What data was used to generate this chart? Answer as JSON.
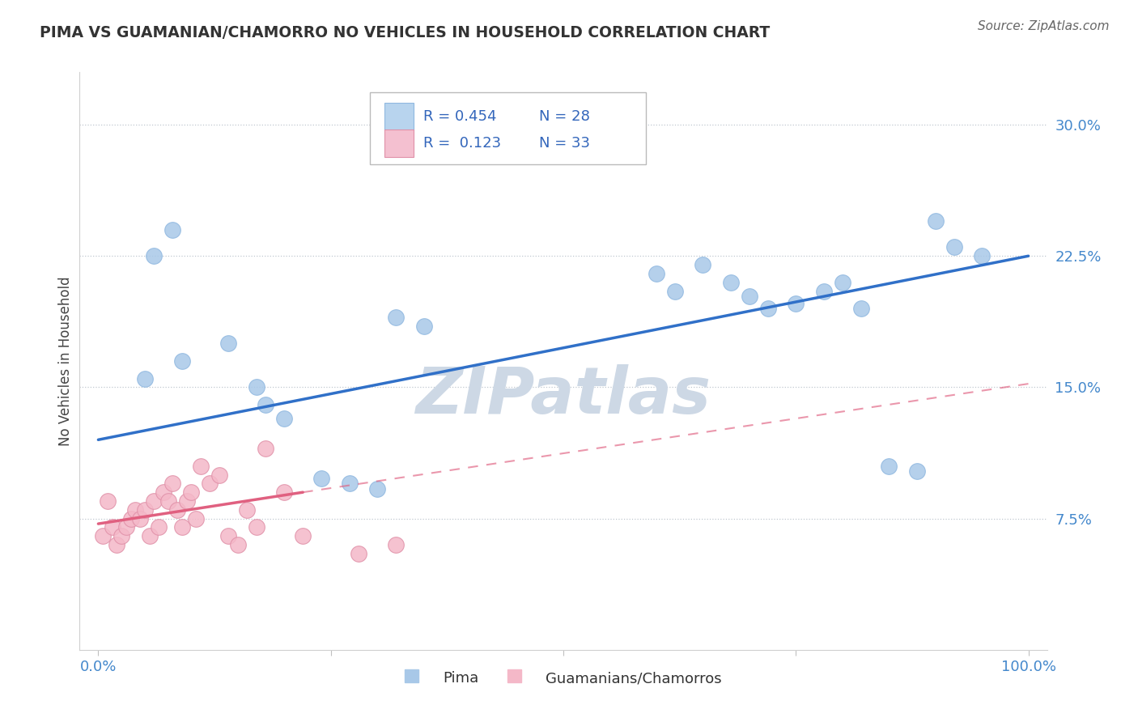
{
  "title": "PIMA VS GUAMANIAN/CHAMORRO NO VEHICLES IN HOUSEHOLD CORRELATION CHART",
  "source": "Source: ZipAtlas.com",
  "ylabel": "No Vehicles in Household",
  "xlim": [
    -2,
    102
  ],
  "ylim": [
    0,
    33
  ],
  "yticks": [
    7.5,
    15.0,
    22.5,
    30.0
  ],
  "xtick_labels": [
    "0.0%",
    "",
    "",
    "",
    "100.0%"
  ],
  "blue_color": "#a8c8e8",
  "pink_color": "#f4b8c8",
  "trend_blue_color": "#3070c8",
  "trend_pink_color": "#e06080",
  "watermark_color": "#dde8f0",
  "pima_x": [
    5,
    6,
    8,
    9,
    14,
    17,
    18,
    20,
    24,
    27,
    30,
    32,
    35,
    60,
    62,
    65,
    68,
    70,
    72,
    75,
    78,
    80,
    82,
    85,
    88,
    90,
    92,
    95
  ],
  "pima_y": [
    15.5,
    22.5,
    24.0,
    16.5,
    17.5,
    15.0,
    14.0,
    13.2,
    9.8,
    9.5,
    9.2,
    19.0,
    18.5,
    21.5,
    20.5,
    22.0,
    21.0,
    20.2,
    19.5,
    19.8,
    20.5,
    21.0,
    19.5,
    10.5,
    10.2,
    24.5,
    23.0,
    22.5
  ],
  "guam_x": [
    0.5,
    1.0,
    1.5,
    2.0,
    2.5,
    3.0,
    3.5,
    4.0,
    4.5,
    5.0,
    5.5,
    6.0,
    6.5,
    7.0,
    7.5,
    8.0,
    8.5,
    9.0,
    9.5,
    10.0,
    10.5,
    11.0,
    12.0,
    13.0,
    14.0,
    15.0,
    16.0,
    17.0,
    18.0,
    20.0,
    22.0,
    28.0,
    32.0
  ],
  "guam_y": [
    6.5,
    8.5,
    7.0,
    6.0,
    6.5,
    7.0,
    7.5,
    8.0,
    7.5,
    8.0,
    6.5,
    8.5,
    7.0,
    9.0,
    8.5,
    9.5,
    8.0,
    7.0,
    8.5,
    9.0,
    7.5,
    10.5,
    9.5,
    10.0,
    6.5,
    6.0,
    8.0,
    7.0,
    11.5,
    9.0,
    6.5,
    5.5,
    6.0
  ],
  "blue_trend_x0": 0,
  "blue_trend_y0": 12.0,
  "blue_trend_x1": 100,
  "blue_trend_y1": 22.5,
  "pink_solid_x0": 0,
  "pink_solid_y0": 7.2,
  "pink_solid_x1": 22,
  "pink_solid_y1": 9.0,
  "pink_dashed_x0": 22,
  "pink_dashed_y0": 9.0,
  "pink_dashed_x1": 100,
  "pink_dashed_y1": 15.2
}
